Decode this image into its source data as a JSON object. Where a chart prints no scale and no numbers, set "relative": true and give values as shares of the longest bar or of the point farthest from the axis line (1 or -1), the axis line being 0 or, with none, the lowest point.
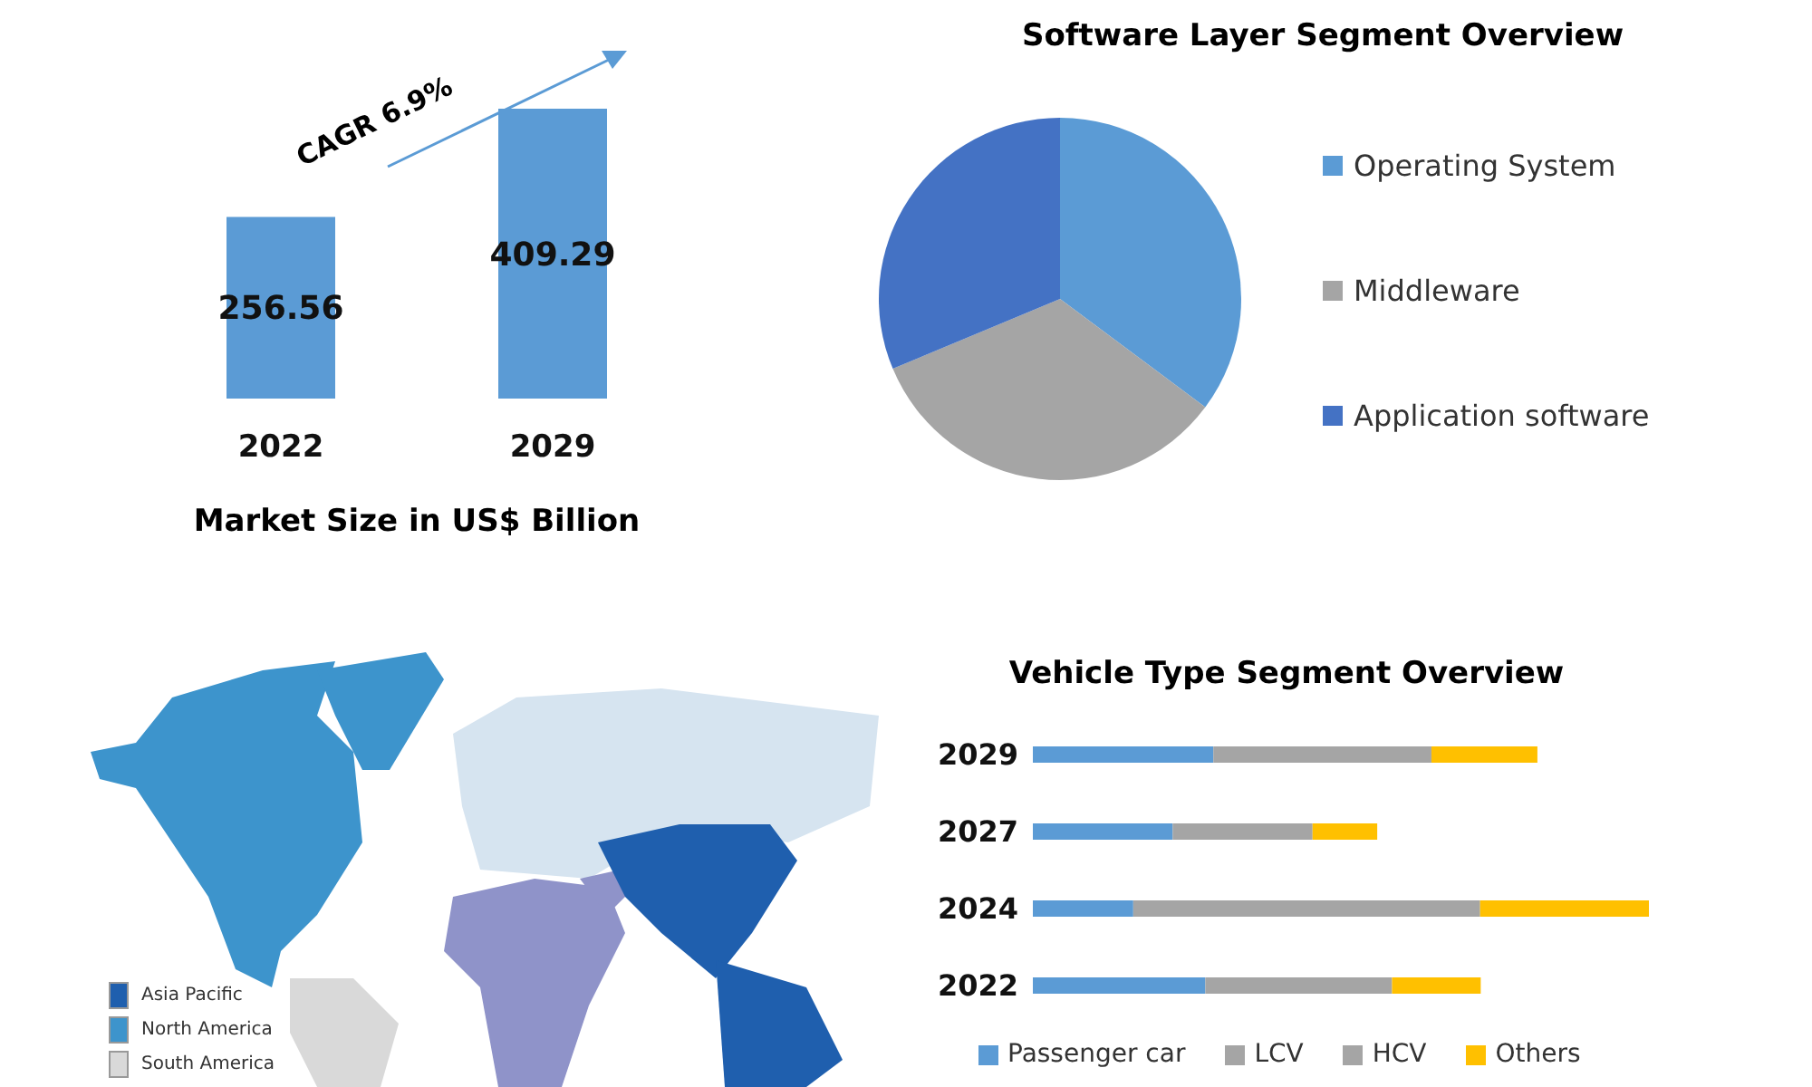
{
  "chart_data": [
    {
      "type": "bar",
      "xlabel": "Market Size in US$ Billion",
      "categories": [
        "2022",
        "2029"
      ],
      "values": [
        256.56,
        409.29
      ],
      "color": "#5b9bd5",
      "data_labels": true,
      "annotations": [
        "CAGR 6.9%"
      ]
    },
    {
      "type": "pie",
      "title": "Software Layer Segment Overview",
      "categories": [
        "Operating System",
        "Middleware",
        "Application software"
      ],
      "values": [
        35.2,
        33.5,
        31.3
      ],
      "colors": [
        "#5b9bd5",
        "#a5a5a5",
        "#4472c4"
      ],
      "legend": "right"
    },
    {
      "type": "other",
      "annotations": [
        "Asia Pacific",
        "North America",
        "South America"
      ],
      "colors": [
        "#1f5fae",
        "#3d94cc",
        "#d9d9d9"
      ]
    },
    {
      "type": "bar",
      "title": "Vehicle Type Segment Overview",
      "orientation": "horizontal",
      "stacked": true,
      "relative": true,
      "legend": "bottom",
      "categories": [
        "2029",
        "2027",
        "2024",
        "2022"
      ],
      "series": [
        {
          "name": "Passenger car",
          "color": "#5b9bd5",
          "values": [
            0.293,
            0.227,
            0.163,
            0.28
          ]
        },
        {
          "name": "LCV",
          "color": "#a5a5a5",
          "values": [
            0.354,
            0.227,
            0.563,
            0.303
          ]
        },
        {
          "name": "HCV",
          "color": "#a5a5a5",
          "values": [
            null,
            null,
            null,
            null
          ]
        },
        {
          "name": "Others",
          "color": "#ffc000",
          "values": [
            0.172,
            0.105,
            0.274,
            0.144
          ]
        }
      ]
    }
  ]
}
